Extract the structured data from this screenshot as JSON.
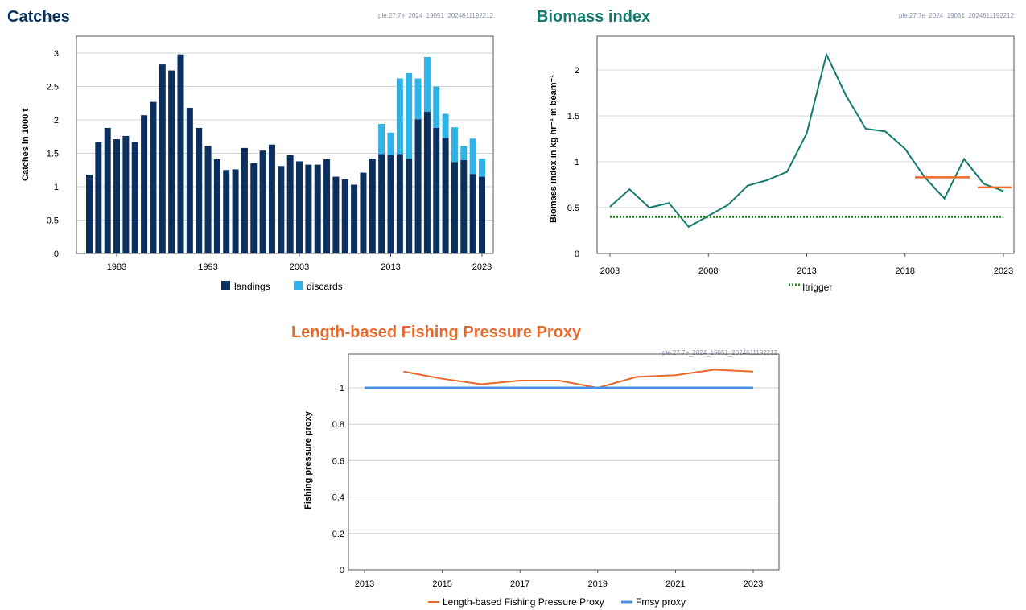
{
  "stamp": "ple.27.7e_2024_19051_2024611192212",
  "chart_data": [
    {
      "type": "bar",
      "title": "Catches",
      "title_color": "#0b2f5e",
      "ylabel": "Catches in 1000 t",
      "xlabel": "",
      "ylim": [
        0,
        3
      ],
      "yticks": [
        "0",
        "0.5",
        "1",
        "1.5",
        "2",
        "2.5",
        "3"
      ],
      "xtick_labels": [
        "1983",
        "1993",
        "2003",
        "2013",
        "2023"
      ],
      "grid": true,
      "stacked": true,
      "categories": [
        1980,
        1981,
        1982,
        1983,
        1984,
        1985,
        1986,
        1987,
        1988,
        1989,
        1990,
        1991,
        1992,
        1993,
        1994,
        1995,
        1996,
        1997,
        1998,
        1999,
        2000,
        2001,
        2002,
        2003,
        2004,
        2005,
        2006,
        2007,
        2008,
        2009,
        2010,
        2011,
        2012,
        2013,
        2014,
        2015,
        2016,
        2017,
        2018,
        2019,
        2020,
        2021,
        2022,
        2023
      ],
      "series": [
        {
          "name": "landings",
          "color": "#0b2f5e",
          "values": [
            1.18,
            1.67,
            1.88,
            1.71,
            1.76,
            1.67,
            2.07,
            2.27,
            2.83,
            2.74,
            2.98,
            2.18,
            1.88,
            1.61,
            1.41,
            1.25,
            1.26,
            1.58,
            1.35,
            1.54,
            1.63,
            1.31,
            1.47,
            1.38,
            1.33,
            1.33,
            1.41,
            1.15,
            1.11,
            1.03,
            1.21,
            1.42,
            1.49,
            1.47,
            1.49,
            1.42,
            2.01,
            2.12,
            1.88,
            1.73,
            1.37,
            1.4,
            1.19,
            1.15
          ]
        },
        {
          "name": "discards",
          "color": "#2fb2e8",
          "values": [
            0,
            0,
            0,
            0,
            0,
            0,
            0,
            0,
            0,
            0,
            0,
            0,
            0,
            0,
            0,
            0,
            0,
            0,
            0,
            0,
            0,
            0,
            0,
            0,
            0,
            0,
            0,
            0,
            0,
            0,
            0,
            0,
            0.45,
            0.34,
            1.13,
            1.28,
            0.61,
            0.82,
            0.62,
            0.36,
            0.52,
            0.21,
            0.53,
            0.27
          ]
        }
      ],
      "legend_position": "bottom"
    },
    {
      "type": "line",
      "title": "Biomass index",
      "title_color": "#127a6e",
      "ylabel": "Biomass index in kg hr⁻¹ m beam⁻¹",
      "xlabel": "",
      "xlim": [
        2003,
        2023
      ],
      "ylim": [
        0,
        2.2
      ],
      "yticks": [
        "0",
        "0.5",
        "1",
        "1.5",
        "2"
      ],
      "xtick_labels": [
        "2003",
        "2008",
        "2013",
        "2018",
        "2023"
      ],
      "grid": true,
      "series": [
        {
          "name": "",
          "color": "#127a6e",
          "x": [
            2003,
            2004,
            2005,
            2006,
            2007,
            2008,
            2009,
            2010,
            2011,
            2012,
            2013,
            2014,
            2015,
            2016,
            2017,
            2018,
            2019,
            2020,
            2021,
            2022,
            2023
          ],
          "y": [
            0.51,
            0.7,
            0.5,
            0.55,
            0.29,
            0.41,
            0.53,
            0.74,
            0.8,
            0.89,
            1.31,
            2.17,
            1.72,
            1.36,
            1.33,
            1.14,
            0.83,
            0.6,
            1.03,
            0.76,
            0.68
          ]
        },
        {
          "name": "",
          "color": "#e8692e",
          "style": "segment",
          "x": [
            2018.5,
            2021.3
          ],
          "y": [
            0.83,
            0.83
          ]
        },
        {
          "name": "",
          "color": "#e8692e",
          "style": "segment",
          "x": [
            2021.7,
            2023.4
          ],
          "y": [
            0.72,
            0.72
          ]
        },
        {
          "name": "Itrigger",
          "color": "#2a8a22",
          "style": "dotted",
          "x": [
            2003,
            2023
          ],
          "y": [
            0.4,
            0.4
          ]
        }
      ],
      "legend": [
        "Itrigger"
      ],
      "legend_position": "bottom"
    },
    {
      "type": "line",
      "title": "Length-based Fishing Pressure Proxy",
      "title_color": "#e8692e",
      "ylabel": "Fishing pressure proxy",
      "xlabel": "",
      "xlim": [
        2013,
        2023
      ],
      "ylim": [
        0,
        1.12
      ],
      "yticks": [
        "0",
        "0.2",
        "0.4",
        "0.6",
        "0.8",
        "1"
      ],
      "xtick_labels": [
        "2013",
        "2015",
        "2017",
        "2019",
        "2021",
        "2023"
      ],
      "grid": true,
      "series": [
        {
          "name": "Length-based Fishing Pressure Proxy",
          "color": "#e8692e",
          "x": [
            2014,
            2015,
            2016,
            2017,
            2018,
            2019,
            2020,
            2021,
            2022,
            2023
          ],
          "y": [
            1.09,
            1.05,
            1.02,
            1.04,
            1.04,
            1.0,
            1.06,
            1.07,
            1.1,
            1.09
          ]
        },
        {
          "name": "Fmsy proxy",
          "color": "#4a90e2",
          "x": [
            2013,
            2023
          ],
          "y": [
            1.0,
            1.0
          ]
        }
      ],
      "legend_position": "bottom"
    }
  ]
}
